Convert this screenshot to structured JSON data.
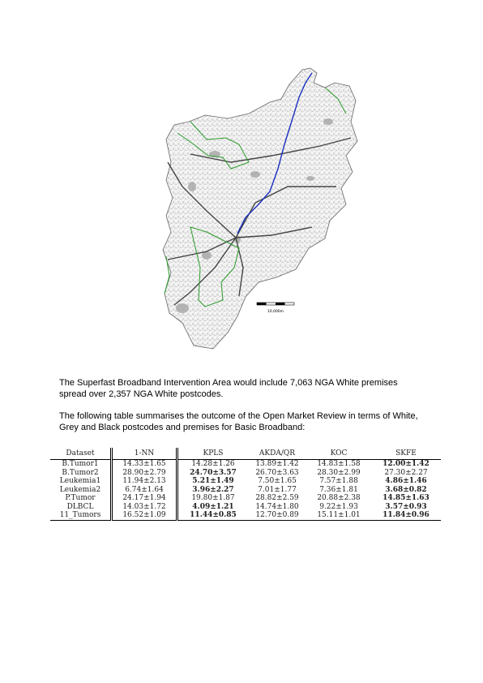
{
  "map": {
    "scale_label": "10,000m"
  },
  "paragraphs": [
    "The Superfast Broadband Intervention Area would include 7,063 NGA White premises spread over 2,357 NGA White postcodes.",
    "The following table summarises the outcome of the Open Market Review in terms of White, Grey and Black postcodes and premises for Basic Broadband:"
  ],
  "table": {
    "headers": [
      "Dataset",
      "1-NN",
      "KPLS",
      "AKDA/QR",
      "KOC",
      "SKFE"
    ],
    "rows": [
      {
        "cells": [
          "B.Tumor1",
          "14.33±1.65",
          "14.28±1.26",
          "13.89±1.42",
          "14.83±1.58",
          "12.00±1.42"
        ],
        "bold": [
          5
        ]
      },
      {
        "cells": [
          "B.Tumor2",
          "28.90±2.79",
          "24.70±3.57",
          "26.70±3.63",
          "28.30±2.99",
          "27.30±2.27"
        ],
        "bold": [
          2
        ]
      },
      {
        "cells": [
          "Leukemia1",
          "11.94±2.13",
          "5.21±1.49",
          "7.50±1.65",
          "7.57±1.88",
          "4.86±1.46"
        ],
        "bold": [
          2,
          5
        ]
      },
      {
        "cells": [
          "Leukemia2",
          "6.74±1.64",
          "3.96±2.27",
          "7.01±1.77",
          "7.36±1.81",
          "3.68±0.82"
        ],
        "bold": [
          2,
          5
        ]
      },
      {
        "cells": [
          "P.Tumor",
          "24.17±1.94",
          "19.80±1.87",
          "28.82±2.59",
          "20.88±2.38",
          "14.85±1.63"
        ],
        "bold": [
          5
        ]
      },
      {
        "cells": [
          "DLBCL",
          "14.03±1.72",
          "4.09±1.21",
          "14.74±1.80",
          "9.22±1.93",
          "3.57±0.93"
        ],
        "bold": [
          2,
          5
        ]
      },
      {
        "cells": [
          "11_Tumors",
          "16.52±1.09",
          "11.44±0.85",
          "12.70±0.89",
          "15.11±1.01",
          "11.84±0.96"
        ],
        "bold": [
          2,
          5
        ]
      }
    ]
  }
}
